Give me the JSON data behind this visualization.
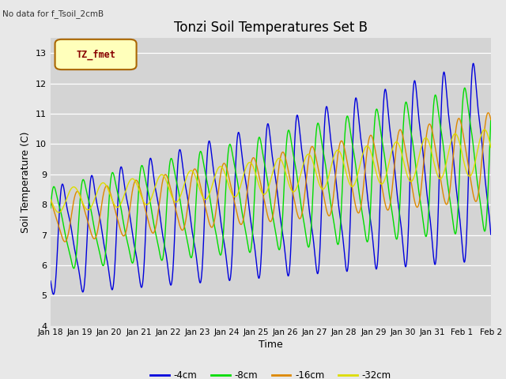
{
  "title": "Tonzi Soil Temperatures Set B",
  "xlabel": "Time",
  "ylabel": "Soil Temperature (C)",
  "no_data_text": "No data for f_Tsoil_2cmB",
  "legend_label_text": "TZ_fmet",
  "ylim": [
    4.0,
    13.5
  ],
  "ytick_vals": [
    4.0,
    5.0,
    6.0,
    7.0,
    8.0,
    9.0,
    10.0,
    11.0,
    12.0,
    13.0
  ],
  "xtick_labels": [
    "Jan 18",
    "Jan 19",
    "Jan 20",
    "Jan 21",
    "Jan 22",
    "Jan 23",
    "Jan 24",
    "Jan 25",
    "Jan 26",
    "Jan 27",
    "Jan 28",
    "Jan 29",
    "Jan 30",
    "Jan 31",
    "Feb 1",
    "Feb 2"
  ],
  "colors": {
    "4cm": "#0000dd",
    "8cm": "#00dd00",
    "16cm": "#dd8800",
    "32cm": "#dddd00"
  },
  "bg_color": "#e8e8e8",
  "plot_bg": "#d4d4d4",
  "grid_color": "#ffffff",
  "legend_labels": [
    "-4cm",
    "-8cm",
    "-16cm",
    "-32cm"
  ],
  "title_fontsize": 12,
  "axis_label_fontsize": 9,
  "tick_fontsize": 8
}
